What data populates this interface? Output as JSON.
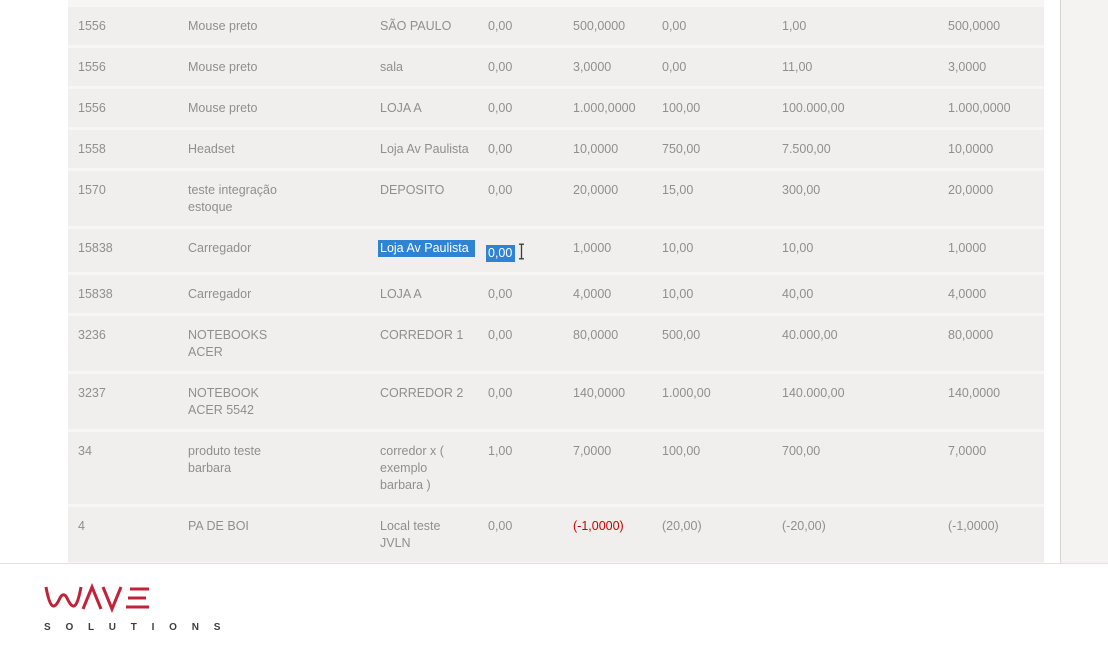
{
  "table": {
    "rows": [
      {
        "code": "1556",
        "product": "Mouse preto",
        "location": "SÃO PAULO",
        "values": [
          "0,00",
          "500,0000",
          "0,00",
          "1,00",
          "500,0000"
        ]
      },
      {
        "code": "1556",
        "product": "Mouse preto",
        "location": "sala",
        "values": [
          "0,00",
          "3,0000",
          "0,00",
          "11,00",
          "3,0000"
        ]
      },
      {
        "code": "1556",
        "product": "Mouse preto",
        "location": "LOJA A",
        "values": [
          "0,00",
          "1.000,0000",
          "100,00",
          "100.000,00",
          "1.000,0000"
        ]
      },
      {
        "code": "1558",
        "product": "Headset",
        "location": "Loja Av Paulista",
        "values": [
          "0,00",
          "10,0000",
          "750,00",
          "7.500,00",
          "10,0000"
        ]
      },
      {
        "code": "1570",
        "product": "teste integração estoque",
        "location": "DEPOSITO",
        "values": [
          "0,00",
          "20,0000",
          "15,00",
          "300,00",
          "20,0000"
        ]
      },
      {
        "code": "15838",
        "product": "Carregador",
        "location": "Loja Av Paulista",
        "values": [
          "0,00",
          "1,0000",
          "10,00",
          "10,00",
          "1,0000"
        ],
        "selected": true
      },
      {
        "code": "15838",
        "product": "Carregador",
        "location": "LOJA A",
        "values": [
          "0,00",
          "4,0000",
          "10,00",
          "40,00",
          "4,0000"
        ]
      },
      {
        "code": "3236",
        "product": "NOTEBOOKS ACER",
        "location": "CORREDOR 1",
        "values": [
          "0,00",
          "80,0000",
          "500,00",
          "40.000,00",
          "80,0000"
        ]
      },
      {
        "code": "3237",
        "product": "NOTEBOOK ACER 5542",
        "location": "CORREDOR 2",
        "values": [
          "0,00",
          "140,0000",
          "1.000,00",
          "140.000,00",
          "140,0000"
        ]
      },
      {
        "code": "34",
        "product": "produto teste barbara",
        "location": "corredor x ( exemplo barbara )",
        "values": [
          "1,00",
          "7,0000",
          "100,00",
          "700,00",
          "7,0000"
        ]
      },
      {
        "code": "4",
        "product": "PA DE BOI",
        "location": "Local teste JVLN",
        "values": [
          "0,00",
          "(-1,0000)",
          "(20,00)",
          "(-20,00)",
          "(-1,0000)"
        ],
        "red_value_index": 1
      }
    ]
  },
  "selection": {
    "selected_location_text": "Loja Av Paulista",
    "selected_value_text": "0,00",
    "cursor": "text-ibeam",
    "highlight_color": "#2f83d5",
    "highlight_text_color": "#ffffff"
  },
  "colors": {
    "table_background": "#f0efed",
    "row_seam": "#f7f6f4",
    "text": "#8f8f8f",
    "negative_red": "#cc0000",
    "side_panel": "#f4f3f1",
    "logo_red": "#c22138",
    "logo_text": "#3e3e3e"
  },
  "logo": {
    "brand": "WAVE",
    "subtitle": "S O L U T I O N S"
  }
}
